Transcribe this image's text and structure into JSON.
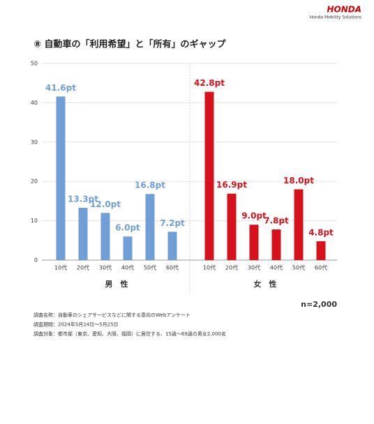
{
  "header": {
    "brand": "HONDA",
    "subbrand": "Honda Mobility Solutions"
  },
  "chart_data": {
    "type": "grouped-bar",
    "title": "⑧ 自動車の「利用希望」と「所有」のギャップ",
    "ylim": [
      0,
      50
    ],
    "yticks": [
      0,
      10,
      20,
      30,
      40,
      50
    ],
    "grid": true,
    "groups": [
      {
        "name": "男　性",
        "color": "#6f9fd6",
        "categories": [
          "10代",
          "20代",
          "30代",
          "40代",
          "50代",
          "60代"
        ],
        "values": [
          41.6,
          13.3,
          12.0,
          6.0,
          16.8,
          7.2
        ],
        "value_labels": [
          "41.6pt",
          "13.3pt",
          "12.0pt",
          "6.0pt",
          "16.8pt",
          "7.2pt"
        ]
      },
      {
        "name": "女　性",
        "color": "#d7111b",
        "categories": [
          "10代",
          "20代",
          "30代",
          "40代",
          "50代",
          "60代"
        ],
        "values": [
          42.8,
          16.9,
          9.0,
          7.8,
          18.0,
          4.8
        ],
        "value_labels": [
          "42.8pt",
          "16.9pt",
          "9.0pt",
          "7.8pt",
          "18.0pt",
          "4.8pt"
        ]
      }
    ],
    "sample_size": "n=2,000",
    "notes": [
      "調査名称：自動車のシェアサービスなどに関する意向のWebアンケート",
      "調査期間：2024年5月24日～5月25日",
      "調査対象：都市部（東京、愛知、大阪、福岡）に居住する、15歳～69歳の男女2,000名"
    ]
  }
}
